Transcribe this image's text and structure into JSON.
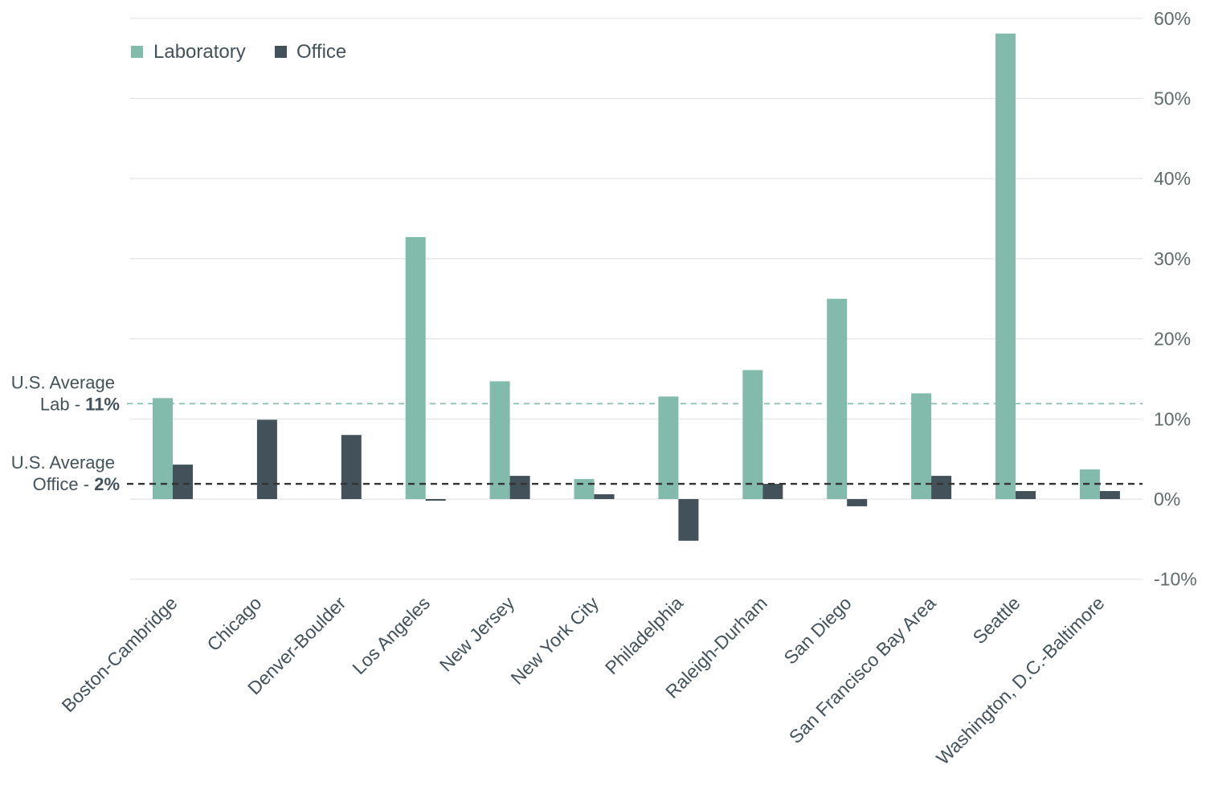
{
  "chart_data": {
    "type": "bar",
    "title": "",
    "xlabel": "",
    "ylabel": "",
    "ylim": [
      -10,
      60
    ],
    "y_ticks": [
      60,
      50,
      40,
      30,
      20,
      10,
      0,
      -10
    ],
    "tick_suffix": "%",
    "y_axis_position": "right",
    "grid": true,
    "legend_position": "top-left",
    "colors": {
      "Laboratory": "#82baab",
      "Office": "#43525a",
      "grid": "#e3e3e3"
    },
    "categories": [
      "Boston-Cambridge",
      "Chicago",
      "Denver-Boulder",
      "Los Angeles",
      "New Jersey",
      "New York City",
      "Philadelphia",
      "Raleigh-Durham",
      "San Diego",
      "San Francisco Bay Area",
      "Seattle",
      "Washington, D.C.-Baltimore"
    ],
    "series": [
      {
        "name": "Laboratory",
        "values": [
          12.6,
          null,
          null,
          32.7,
          14.7,
          2.5,
          12.8,
          16.1,
          25.0,
          13.2,
          58.1,
          3.7
        ]
      },
      {
        "name": "Office",
        "values": [
          4.3,
          9.9,
          8.0,
          -0.2,
          2.9,
          0.6,
          -5.2,
          1.9,
          -0.9,
          2.9,
          1.0,
          1.0
        ]
      }
    ],
    "reference_lines": [
      {
        "name": "U.S. Average Lab",
        "value": 11,
        "color": "#82baab",
        "label_line1": "U.S. Average",
        "label_prefix": "Lab - ",
        "label_value": "11%"
      },
      {
        "name": "U.S. Average Office",
        "value": 2,
        "color": "#333333",
        "label_line1": "U.S. Average",
        "label_prefix": "Office - ",
        "label_value": "2%"
      }
    ]
  }
}
